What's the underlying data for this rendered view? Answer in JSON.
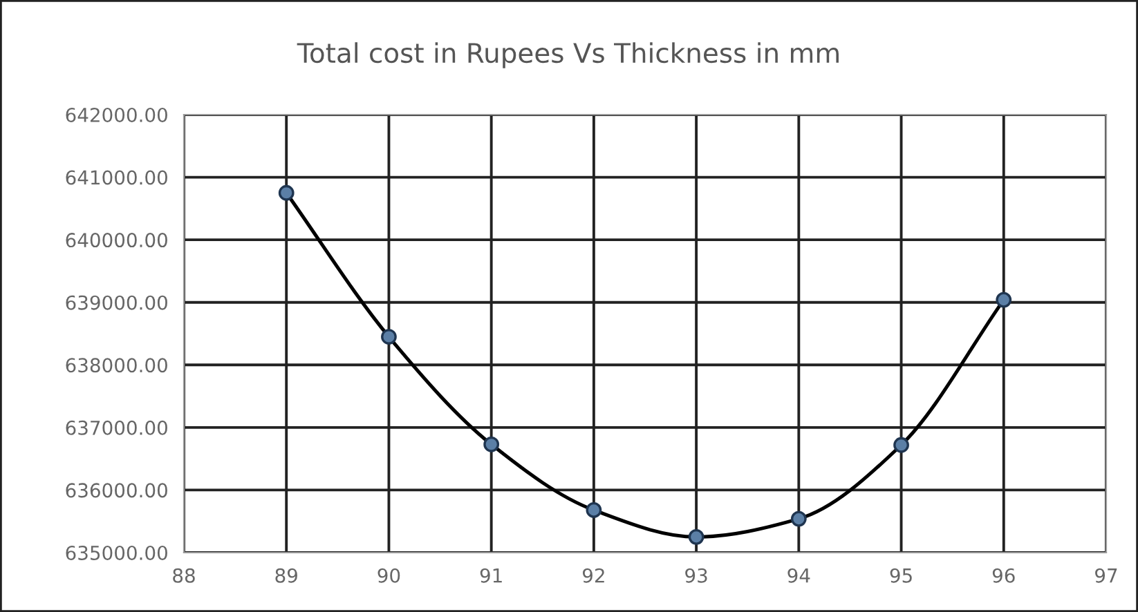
{
  "chart_data": {
    "type": "line",
    "title": "Total cost in Rupees Vs Thickness in mm",
    "x": [
      89,
      90,
      91,
      92,
      93,
      94,
      95,
      96
    ],
    "series": [
      {
        "color": "#000000",
        "values": [
          640750,
          638450,
          636730,
          635680,
          635250,
          635540,
          636720,
          639040
        ]
      }
    ],
    "xlim": [
      88,
      97
    ],
    "xticks": [
      88,
      89,
      90,
      91,
      92,
      93,
      94,
      95,
      96,
      97
    ],
    "ylim": [
      635000,
      642000
    ],
    "yticks": [
      {
        "value": 635000,
        "label": "635000.00"
      },
      {
        "value": 636000,
        "label": "636000.00"
      },
      {
        "value": 637000,
        "label": "637000.00"
      },
      {
        "value": 638000,
        "label": "638000.00"
      },
      {
        "value": 639000,
        "label": "639000.00"
      },
      {
        "value": 640000,
        "label": "640000.00"
      },
      {
        "value": 641000,
        "label": "641000.00"
      },
      {
        "value": 642000,
        "label": "642000.00"
      }
    ],
    "grid": true,
    "marker": "circle",
    "line_style": "solid",
    "legend": false
  }
}
